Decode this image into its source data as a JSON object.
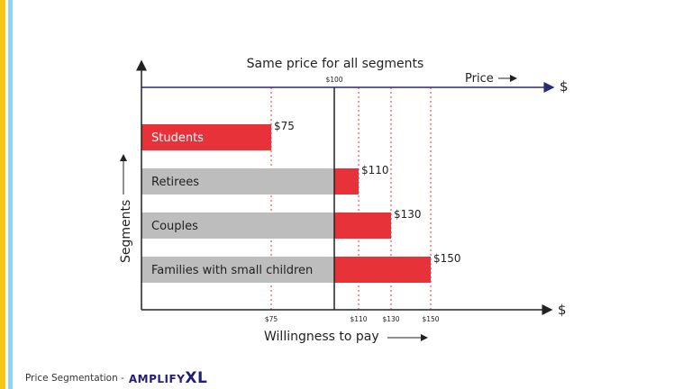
{
  "colors": {
    "accent_red": "#e8323a",
    "gray_bar": "#bdbdbd",
    "price_axis": "#2b2a7a",
    "stripe_yellow": "#f5c518",
    "stripe_blue": "#8fd3ee"
  },
  "diagram": {
    "title": "Same price for all segments",
    "price_axis_label": "Price",
    "currency_symbol": "$",
    "x_axis_label": "Willingness to pay",
    "y_axis_label": "Segments",
    "same_price": {
      "value": 100,
      "label": "$100"
    },
    "segments": [
      {
        "name": "Students",
        "wtp": 75,
        "label": "$75"
      },
      {
        "name": "Retirees",
        "wtp": 110,
        "label": "$110"
      },
      {
        "name": "Couples",
        "wtp": 130,
        "label": "$130"
      },
      {
        "name": "Families with small children",
        "wtp": 150,
        "label": "$150"
      }
    ],
    "x_ticks": [
      "$75",
      "$110",
      "$130",
      "$150"
    ]
  },
  "footer": {
    "caption": "Price Segmentation -",
    "logo_text": "AMPLIFY",
    "logo_suffix": "XL"
  }
}
